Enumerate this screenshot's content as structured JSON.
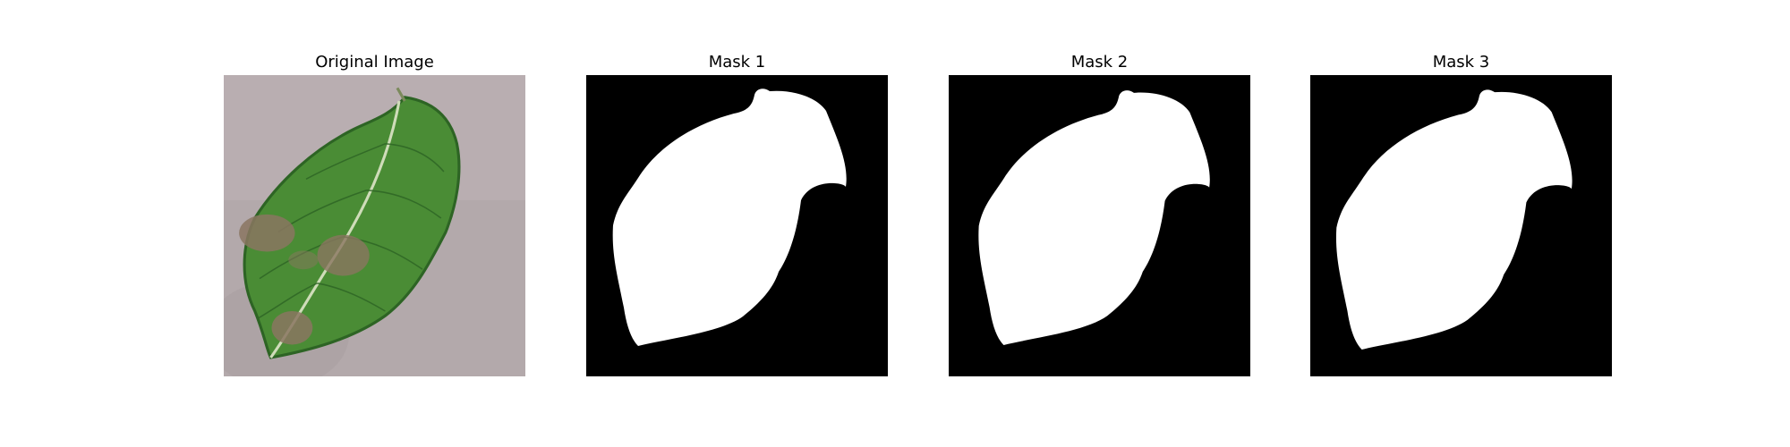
{
  "figure": {
    "panels": [
      {
        "title": "Original Image"
      },
      {
        "title": "Mask 1"
      },
      {
        "title": "Mask 2"
      },
      {
        "title": "Mask 3"
      }
    ]
  },
  "colors": {
    "background": "#ffffff",
    "mask_background": "#000000",
    "mask_foreground": "#ffffff",
    "ground": "#b3a9ab",
    "leaf_green": "#4a8c35",
    "leaf_dark": "#2d6424",
    "lesion_brown": "#8a7560"
  },
  "icons": {
    "original": "leaf-photo",
    "masks": "leaf-segmentation-mask"
  }
}
